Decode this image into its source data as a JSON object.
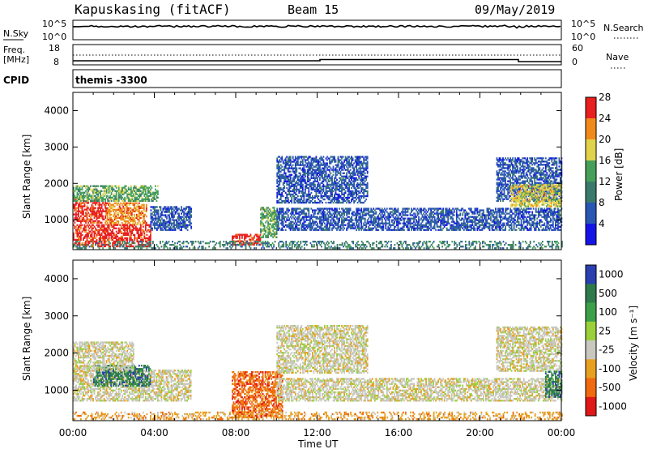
{
  "header": {
    "station": "Kapuskasing (fitACF)",
    "beam": "Beam 15",
    "date": "09/May/2019"
  },
  "panels": {
    "nsky": {
      "label": "N.Sky",
      "y_top": "10^5",
      "y_bottom": "10^0",
      "right_top": "10^5",
      "right_bottom": "10^0",
      "legend": "N.Search"
    },
    "freq": {
      "label_line1": "Freq.",
      "label_line2": "[MHz]",
      "y_top": "18",
      "y_bottom": "8",
      "right_top": "60",
      "right_bottom": "0",
      "legend": "Nave"
    },
    "cpid": {
      "label": "CPID",
      "value": "themis -3300"
    }
  },
  "chart_data": [
    {
      "type": "heatmap",
      "name": "power",
      "ylabel": "Slant Range [km]",
      "yticks": [
        1000,
        2000,
        3000,
        4000
      ],
      "ylim": [
        180,
        4500
      ],
      "xlim_hours": [
        0,
        24
      ],
      "colorbar": {
        "label": "Power [dB]",
        "ticks": [
          "4",
          "8",
          "12",
          "16",
          "20",
          "24",
          "28"
        ],
        "colors": [
          "#1414e6",
          "#2a56b4",
          "#3a7a6a",
          "#46a05a",
          "#e0d24a",
          "#f08a1a",
          "#e82020"
        ]
      },
      "regions": [
        {
          "t0": 0.0,
          "t1": 1.6,
          "r0": 900,
          "r1": 1550,
          "class": 6
        },
        {
          "t0": 1.6,
          "t1": 3.6,
          "r0": 850,
          "r1": 1450,
          "class": 5
        },
        {
          "t0": 0.0,
          "t1": 3.8,
          "r0": 250,
          "r1": 850,
          "class": 6
        },
        {
          "t0": 0.0,
          "t1": 4.2,
          "r0": 1500,
          "r1": 1950,
          "class": 3
        },
        {
          "t0": 3.8,
          "t1": 5.8,
          "r0": 700,
          "r1": 1350,
          "class": 1
        },
        {
          "t0": 7.8,
          "t1": 9.2,
          "r0": 300,
          "r1": 600,
          "class": 6
        },
        {
          "t0": 9.2,
          "t1": 10.0,
          "r0": 500,
          "r1": 1350,
          "class": 3
        },
        {
          "t0": 10.0,
          "t1": 14.5,
          "r0": 1450,
          "r1": 2750,
          "class": 1
        },
        {
          "t0": 10.0,
          "t1": 24.0,
          "r0": 700,
          "r1": 1300,
          "class": 1
        },
        {
          "t0": 20.8,
          "t1": 24.0,
          "r0": 1500,
          "r1": 2700,
          "class": 1
        },
        {
          "t0": 21.5,
          "t1": 24.0,
          "r0": 1350,
          "r1": 1950,
          "class": 4
        },
        {
          "t0": 0.0,
          "t1": 24.0,
          "r0": 200,
          "r1": 420,
          "class": 2
        }
      ]
    },
    {
      "type": "heatmap",
      "name": "velocity",
      "ylabel": "Slant Range [km]",
      "yticks": [
        1000,
        2000,
        3000,
        4000
      ],
      "ylim": [
        180,
        4500
      ],
      "xlim_hours": [
        0,
        24
      ],
      "xticks": [
        "00:00",
        "04:00",
        "08:00",
        "12:00",
        "16:00",
        "20:00",
        "00:00"
      ],
      "xlabel": "Time UT",
      "colorbar": {
        "label": "Velocity [m s⁻¹]",
        "ticks": [
          "1000",
          "500",
          "100",
          "25",
          "-25",
          "-100",
          "-500",
          "-1000"
        ],
        "colors": [
          "#2a3fb0",
          "#2e7a4a",
          "#3ca04a",
          "#9ad03a",
          "#c8c8c0",
          "#e8a020",
          "#f06a10",
          "#e01818"
        ]
      },
      "regions": [
        {
          "t0": 0.0,
          "t1": 5.8,
          "r0": 700,
          "r1": 1550,
          "class": 4
        },
        {
          "t0": 1.0,
          "t1": 3.8,
          "r0": 1100,
          "r1": 1650,
          "class": 1
        },
        {
          "t0": 0.0,
          "t1": 3.0,
          "r0": 1500,
          "r1": 2300,
          "class": 4
        },
        {
          "t0": 7.8,
          "t1": 10.3,
          "r0": 250,
          "r1": 1500,
          "class": 6
        },
        {
          "t0": 10.0,
          "t1": 14.5,
          "r0": 1450,
          "r1": 2750,
          "class": 4
        },
        {
          "t0": 10.0,
          "t1": 24.0,
          "r0": 700,
          "r1": 1300,
          "class": 4
        },
        {
          "t0": 20.8,
          "t1": 24.0,
          "r0": 1500,
          "r1": 2700,
          "class": 4
        },
        {
          "t0": 23.2,
          "t1": 24.0,
          "r0": 800,
          "r1": 1500,
          "class": 1
        },
        {
          "t0": 0.0,
          "t1": 24.0,
          "r0": 200,
          "r1": 420,
          "class": 5
        }
      ]
    }
  ],
  "colors": {
    "axis": "#000000",
    "background": "#ffffff"
  }
}
